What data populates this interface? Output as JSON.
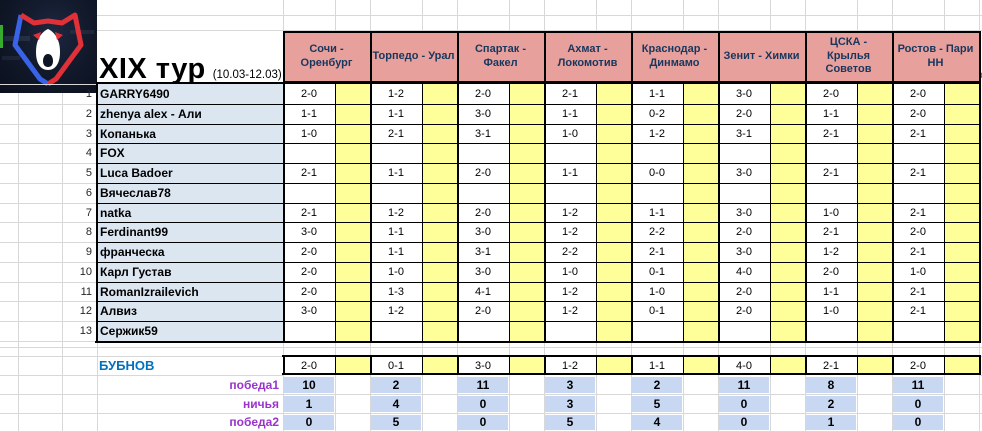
{
  "icons": {
    "logo": "rpl-bear-logo"
  },
  "title": {
    "round": "XIX тур",
    "dates": "(10.03-12.03)"
  },
  "matches": [
    "Сочи - Оренбург",
    "Торпедо - Урал",
    "Спартак - Факел",
    "Ахмат - Локомотив",
    "Краснодар - Динмамо",
    "Зенит - Химки",
    "ЦСКА - Крылья Советов",
    "Ростов - Пари НН"
  ],
  "players": [
    {
      "num": 1,
      "name": "GARRY6490",
      "predictions": [
        "2-0",
        "1-2",
        "2-0",
        "2-1",
        "1-1",
        "3-0",
        "2-0",
        "2-0"
      ]
    },
    {
      "num": 2,
      "name": "zhenya alex - Али",
      "predictions": [
        "1-1",
        "1-1",
        "3-0",
        "1-1",
        "0-2",
        "2-0",
        "1-1",
        "2-0"
      ]
    },
    {
      "num": 3,
      "name": "Копанька",
      "predictions": [
        "1-0",
        "2-1",
        "3-1",
        "1-0",
        "1-2",
        "3-1",
        "2-1",
        "2-1"
      ]
    },
    {
      "num": 4,
      "name": "FOX",
      "predictions": [
        "",
        "",
        "",
        "",
        "",
        "",
        "",
        ""
      ]
    },
    {
      "num": 5,
      "name": "Luca Badoer",
      "predictions": [
        "2-1",
        "1-1",
        "2-0",
        "1-1",
        "0-0",
        "3-0",
        "2-1",
        "2-1"
      ]
    },
    {
      "num": 6,
      "name": "Вячеслав78",
      "predictions": [
        "",
        "",
        "",
        "",
        "",
        "",
        "",
        ""
      ]
    },
    {
      "num": 7,
      "name": "natka",
      "predictions": [
        "2-1",
        "1-2",
        "2-0",
        "1-2",
        "1-1",
        "3-0",
        "1-0",
        "2-1"
      ]
    },
    {
      "num": 8,
      "name": "Ferdinant99",
      "predictions": [
        "3-0",
        "1-1",
        "3-0",
        "1-2",
        "2-2",
        "2-0",
        "2-1",
        "2-0"
      ]
    },
    {
      "num": 9,
      "name": "франческа",
      "predictions": [
        "2-0",
        "1-1",
        "3-1",
        "2-2",
        "2-1",
        "3-0",
        "1-2",
        "2-1"
      ]
    },
    {
      "num": 10,
      "name": "Карл Густав",
      "predictions": [
        "2-0",
        "1-0",
        "3-0",
        "1-0",
        "0-1",
        "4-0",
        "2-0",
        "1-0"
      ]
    },
    {
      "num": 11,
      "name": "RomanIzrailevich",
      "predictions": [
        "2-0",
        "1-3",
        "4-1",
        "1-2",
        "1-0",
        "2-0",
        "1-1",
        "2-1"
      ]
    },
    {
      "num": 12,
      "name": "Алвиз",
      "predictions": [
        "3-0",
        "1-2",
        "2-0",
        "1-2",
        "0-1",
        "2-0",
        "1-0",
        "2-1"
      ]
    },
    {
      "num": 13,
      "name": "Сержик59",
      "predictions": [
        "",
        "",
        "",
        "",
        "",
        "",
        "",
        ""
      ]
    }
  ],
  "expert": {
    "name": "БУБНОВ",
    "predictions": [
      "2-0",
      "0-1",
      "3-0",
      "1-2",
      "1-1",
      "4-0",
      "2-1",
      "2-0"
    ]
  },
  "stats": [
    {
      "label": "победа1",
      "values": [
        10,
        2,
        11,
        3,
        2,
        11,
        8,
        11
      ]
    },
    {
      "label": "ничья",
      "values": [
        1,
        4,
        0,
        3,
        5,
        0,
        2,
        0
      ]
    },
    {
      "label": "победа2",
      "values": [
        0,
        5,
        0,
        5,
        4,
        0,
        1,
        0
      ]
    }
  ],
  "colors": {
    "header_bg": "#E8A09C",
    "header_text": "#17375E",
    "points_bg": "#FFFF99",
    "name_bg": "#DCE6F1",
    "stat_bg": "#C8D8F2",
    "expert_text": "#0070C0",
    "stat_label_text": "#9933CC",
    "grid_line": "#d8d8d8",
    "logo_green": "#35AC2B",
    "artifact_red": "#E8321E"
  }
}
